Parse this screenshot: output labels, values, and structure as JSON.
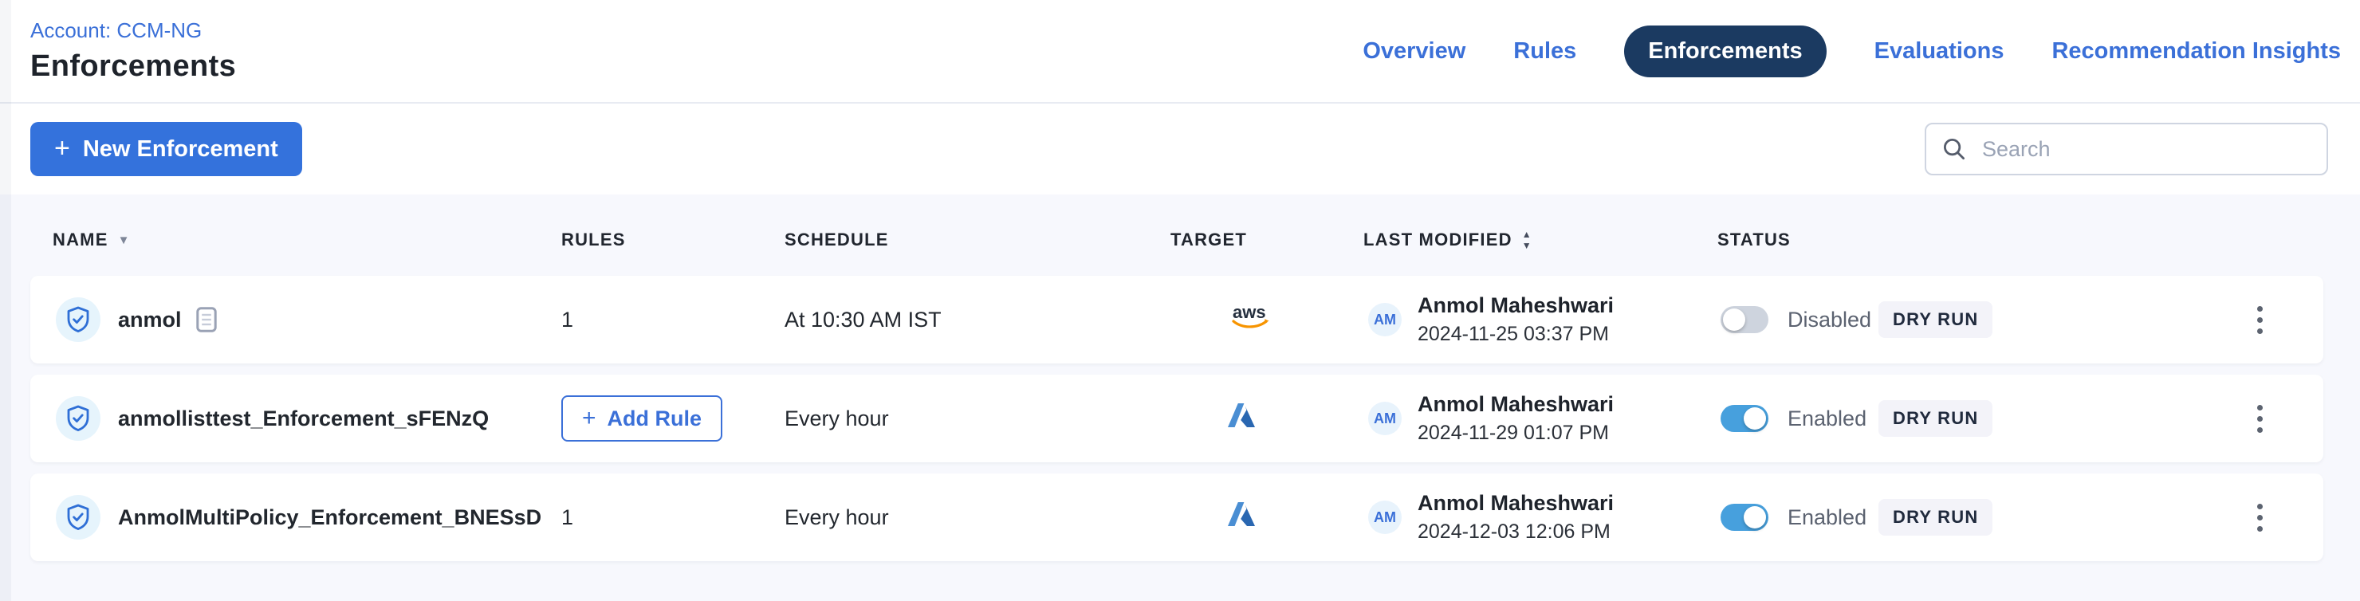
{
  "header": {
    "account_label": "Account: CCM-NG",
    "title": "Enforcements"
  },
  "tabs": [
    {
      "label": "Overview",
      "active": false
    },
    {
      "label": "Rules",
      "active": false
    },
    {
      "label": "Enforcements",
      "active": true
    },
    {
      "label": "Evaluations",
      "active": false
    },
    {
      "label": "Recommendation Insights",
      "active": false
    }
  ],
  "toolbar": {
    "new_button_label": "New Enforcement",
    "plus_icon": "+",
    "search_placeholder": "Search"
  },
  "table": {
    "columns": [
      {
        "label": "NAME",
        "sort": "desc"
      },
      {
        "label": "RULES",
        "sort": "none"
      },
      {
        "label": "SCHEDULE",
        "sort": "none"
      },
      {
        "label": "TARGET",
        "sort": "none"
      },
      {
        "label": "LAST MODIFIED",
        "sort": "both"
      },
      {
        "label": "STATUS",
        "sort": "none"
      }
    ],
    "rows": [
      {
        "name": "anmol",
        "note_icon": true,
        "rules": "1",
        "add_rule_label": null,
        "schedule": "At 10:30 AM IST",
        "target": "aws",
        "avatar_initials": "AM",
        "modified_by": "Anmol Maheshwari",
        "modified_date": "2024-11-25 03:37 PM",
        "enabled": false,
        "status_label": "Disabled",
        "mode": "DRY RUN"
      },
      {
        "name": "anmollisttest_Enforcement_sFENzQ",
        "note_icon": false,
        "rules": null,
        "add_rule_label": "Add Rule",
        "schedule": "Every hour",
        "target": "azure",
        "avatar_initials": "AM",
        "modified_by": "Anmol Maheshwari",
        "modified_date": "2024-11-29 01:07 PM",
        "enabled": true,
        "status_label": "Enabled",
        "mode": "DRY RUN"
      },
      {
        "name": "AnmolMultiPolicy_Enforcement_BNESsD",
        "note_icon": false,
        "rules": "1",
        "add_rule_label": null,
        "schedule": "Every hour",
        "target": "azure",
        "avatar_initials": "AM",
        "modified_by": "Anmol Maheshwari",
        "modified_date": "2024-12-03 12:06 PM",
        "enabled": true,
        "status_label": "Enabled",
        "mode": "DRY RUN"
      }
    ]
  },
  "colors": {
    "link_blue": "#3b70d8",
    "active_tab_bg": "#1b3a61",
    "primary_button": "#3472dc",
    "toggle_on": "#47a0dd",
    "toggle_off": "#ced4de",
    "badge_bg": "#f3f3f9",
    "aws_orange": "#f79400",
    "azure_blue": "#2e6fbd",
    "shield_blue": "#2f6fd6",
    "table_bg": "#f7f8fd"
  }
}
